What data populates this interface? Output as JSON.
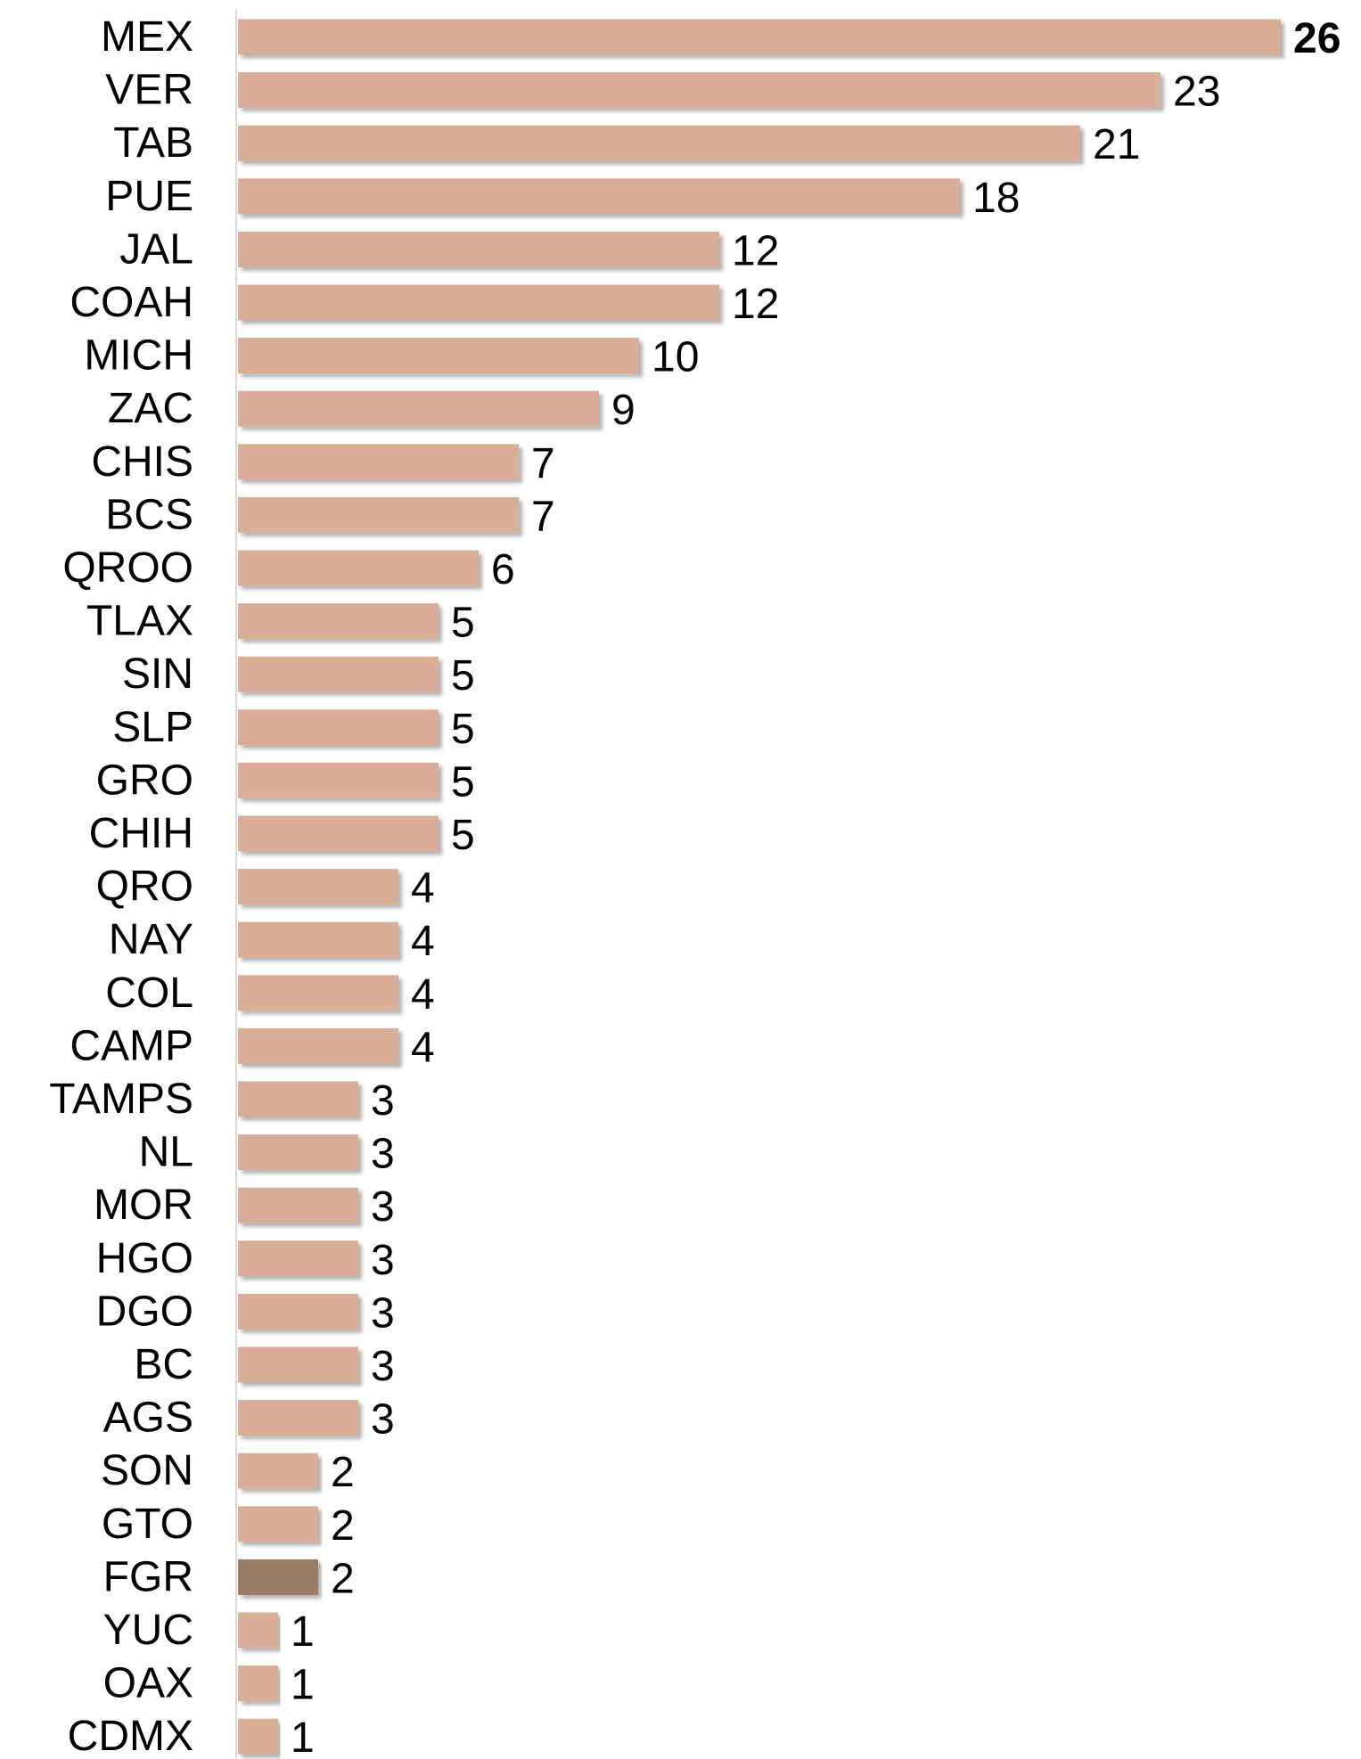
{
  "chart_data": {
    "type": "barh",
    "categories": [
      "MEX",
      "VER",
      "TAB",
      "PUE",
      "JAL",
      "COAH",
      "MICH",
      "ZAC",
      "CHIS",
      "BCS",
      "QROO",
      "TLAX",
      "SIN",
      "SLP",
      "GRO",
      "CHIH",
      "QRO",
      "NAY",
      "COL",
      "CAMP",
      "TAMPS",
      "NL",
      "MOR",
      "HGO",
      "DGO",
      "BC",
      "AGS",
      "SON",
      "GTO",
      "FGR",
      "YUC",
      "OAX",
      "CDMX"
    ],
    "values": [
      26,
      23,
      21,
      18,
      12,
      12,
      10,
      9,
      7,
      7,
      6,
      5,
      5,
      5,
      5,
      5,
      4,
      4,
      4,
      4,
      3,
      3,
      3,
      3,
      3,
      3,
      3,
      2,
      2,
      2,
      1,
      1,
      1
    ],
    "colors": [
      "#d9ae96",
      "#d9ae96",
      "#d9ae96",
      "#d9ae96",
      "#d9ae96",
      "#d9ae96",
      "#d9ae96",
      "#d9ae96",
      "#d9ae96",
      "#d9ae96",
      "#d9ae96",
      "#d9ae96",
      "#d9ae96",
      "#d9ae96",
      "#d9ae96",
      "#d9ae96",
      "#d9ae96",
      "#d9ae96",
      "#d9ae96",
      "#d9ae96",
      "#d9ae96",
      "#d9ae96",
      "#d9ae96",
      "#d9ae96",
      "#d9ae96",
      "#d9ae96",
      "#d9ae96",
      "#d9ae96",
      "#d9ae96",
      "#9a7b66",
      "#d9ae96",
      "#d9ae96",
      "#d9ae96"
    ],
    "bold_value_label_index": 0
  }
}
